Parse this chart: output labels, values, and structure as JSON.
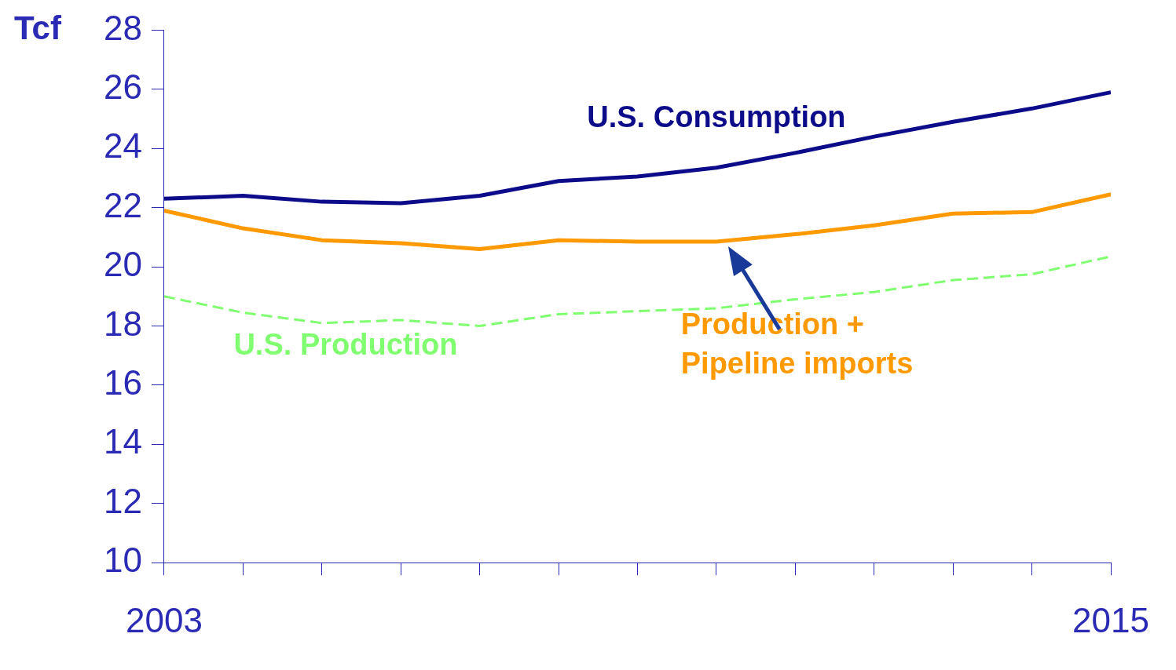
{
  "chart_data": {
    "type": "line",
    "ylabel": "Tcf",
    "x": [
      2003,
      2004,
      2005,
      2006,
      2007,
      2008,
      2009,
      2010,
      2011,
      2012,
      2013,
      2014,
      2015
    ],
    "xlim": [
      2003,
      2015
    ],
    "xticks": [
      2003,
      {
        "value": 2004,
        "label": null
      },
      {
        "value": 2005,
        "label": null
      },
      {
        "value": 2006,
        "label": null
      },
      {
        "value": 2007,
        "label": null
      },
      {
        "value": 2008,
        "label": null
      },
      {
        "value": 2009,
        "label": null
      },
      {
        "value": 2010,
        "label": null
      },
      {
        "value": 2011,
        "label": null
      },
      {
        "value": 2012,
        "label": null
      },
      {
        "value": 2013,
        "label": null
      },
      {
        "value": 2014,
        "label": null
      },
      2015
    ],
    "ylim": [
      10,
      28
    ],
    "yticks": [
      10,
      12,
      14,
      16,
      18,
      20,
      22,
      24,
      26,
      28
    ],
    "grid": false,
    "legend": false,
    "marker": "none",
    "series": [
      {
        "name": "U.S. Consumption",
        "color": "#0c0c8a",
        "line_style": "solid",
        "values": [
          22.3,
          22.4,
          22.2,
          22.15,
          22.4,
          22.9,
          23.05,
          23.35,
          23.85,
          24.4,
          24.9,
          25.35,
          25.9
        ]
      },
      {
        "name": "Production +\nPipeline imports",
        "color": "#ff9900",
        "line_style": "solid",
        "values": [
          21.9,
          21.3,
          20.9,
          20.8,
          20.6,
          20.9,
          20.85,
          20.85,
          21.1,
          21.4,
          21.8,
          21.85,
          22.45
        ]
      },
      {
        "name": "U.S. Production",
        "color": "#80ff70",
        "line_style": "dashed",
        "values": [
          19.0,
          18.45,
          18.1,
          18.2,
          18.0,
          18.4,
          18.5,
          18.6,
          18.9,
          19.15,
          19.55,
          19.75,
          20.35
        ]
      }
    ]
  }
}
